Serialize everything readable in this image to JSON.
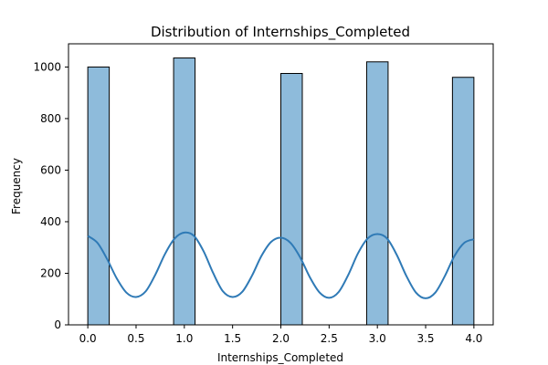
{
  "chart_data": {
    "type": "bar",
    "title": "Distribution of Internships_Completed",
    "xlabel": "Internships_Completed",
    "ylabel": "Frequency",
    "xlim": [
      -0.2,
      4.2
    ],
    "ylim": [
      0,
      1090
    ],
    "xticks": [
      0.0,
      0.5,
      1.0,
      1.5,
      2.0,
      2.5,
      3.0,
      3.5,
      4.0
    ],
    "xtick_labels": [
      "0.0",
      "0.5",
      "1.0",
      "1.5",
      "2.0",
      "2.5",
      "3.0",
      "3.5",
      "4.0"
    ],
    "yticks": [
      0,
      200,
      400,
      600,
      800,
      1000
    ],
    "ytick_labels": [
      "0",
      "200",
      "400",
      "600",
      "800",
      "1000"
    ],
    "bin_width": 0.2222,
    "bars": [
      {
        "x_start": 0.0,
        "value": 1000
      },
      {
        "x_start": 0.8889,
        "value": 1035
      },
      {
        "x_start": 2.0,
        "value": 975
      },
      {
        "x_start": 2.8889,
        "value": 1020
      },
      {
        "x_start": 3.7778,
        "value": 960
      }
    ],
    "kde": {
      "x": [
        0.0,
        0.1,
        0.2,
        0.3,
        0.4,
        0.5,
        0.6,
        0.7,
        0.8,
        0.9,
        1.0,
        1.1,
        1.2,
        1.3,
        1.4,
        1.5,
        1.6,
        1.7,
        1.8,
        1.9,
        2.0,
        2.1,
        2.2,
        2.3,
        2.4,
        2.5,
        2.6,
        2.7,
        2.8,
        2.9,
        3.0,
        3.1,
        3.2,
        3.3,
        3.4,
        3.5,
        3.6,
        3.7,
        3.8,
        3.9,
        4.0
      ],
      "y": [
        345,
        318,
        255,
        180,
        125,
        108,
        130,
        195,
        275,
        335,
        358,
        345,
        285,
        200,
        130,
        108,
        128,
        190,
        268,
        322,
        338,
        318,
        262,
        185,
        126,
        105,
        128,
        195,
        278,
        335,
        352,
        335,
        272,
        190,
        125,
        103,
        125,
        190,
        268,
        318,
        332
      ]
    },
    "bar_color": "#8ebbdb",
    "bar_edge_color": "#000000",
    "line_color": "#2f7ab6",
    "grid": false,
    "legend": "none"
  }
}
